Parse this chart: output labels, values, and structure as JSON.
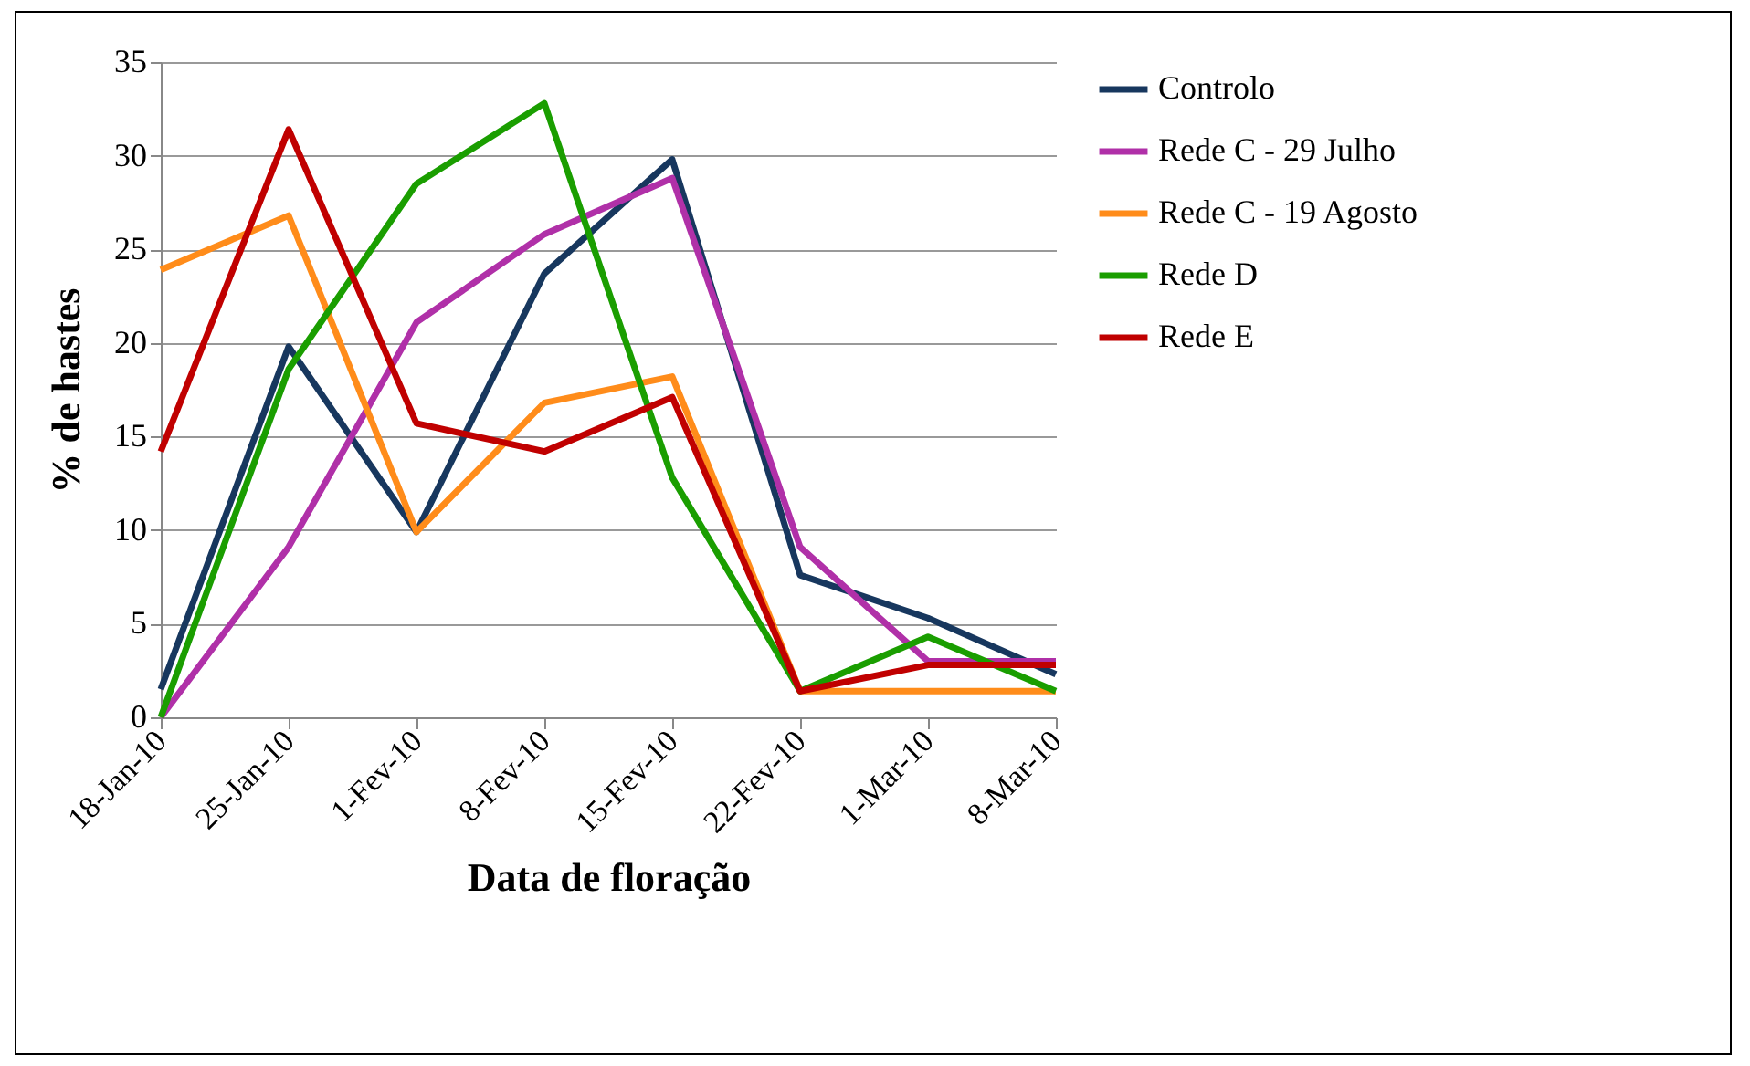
{
  "chart_data": {
    "type": "line",
    "xlabel": "Data de floração",
    "ylabel": "% de hastes",
    "categories": [
      "18-Jan-10",
      "25-Jan-10",
      "1-Fev-10",
      "8-Fev-10",
      "15-Fev-10",
      "22-Fev-10",
      "1-Mar-10",
      "8-Mar-10"
    ],
    "series": [
      {
        "name": "Controlo",
        "color": "#17375e",
        "values": [
          1.5,
          19.8,
          9.9,
          23.7,
          29.8,
          7.6,
          5.3,
          2.3
        ]
      },
      {
        "name": "Rede C - 29 Julho",
        "color": "#b030a8",
        "values": [
          0,
          9.1,
          21.1,
          25.8,
          28.8,
          9.1,
          3.0,
          3.0
        ]
      },
      {
        "name": "Rede C - 19 Agosto",
        "color": "#ff8c1a",
        "values": [
          23.9,
          26.8,
          9.9,
          16.8,
          18.2,
          1.4,
          1.4,
          1.4
        ]
      },
      {
        "name": "Rede D",
        "color": "#1a9e00",
        "values": [
          0,
          18.6,
          28.5,
          32.8,
          12.8,
          1.4,
          4.3,
          1.4
        ]
      },
      {
        "name": "Rede E",
        "color": "#c00000",
        "values": [
          14.2,
          31.4,
          15.7,
          14.2,
          17.1,
          1.4,
          2.8,
          2.8
        ]
      }
    ],
    "ylim": [
      0,
      35
    ],
    "yticks": [
      0,
      5,
      10,
      15,
      20,
      25,
      30,
      35
    ],
    "grid": "y",
    "legend": "right",
    "marker": "none",
    "line_style": "solid"
  }
}
